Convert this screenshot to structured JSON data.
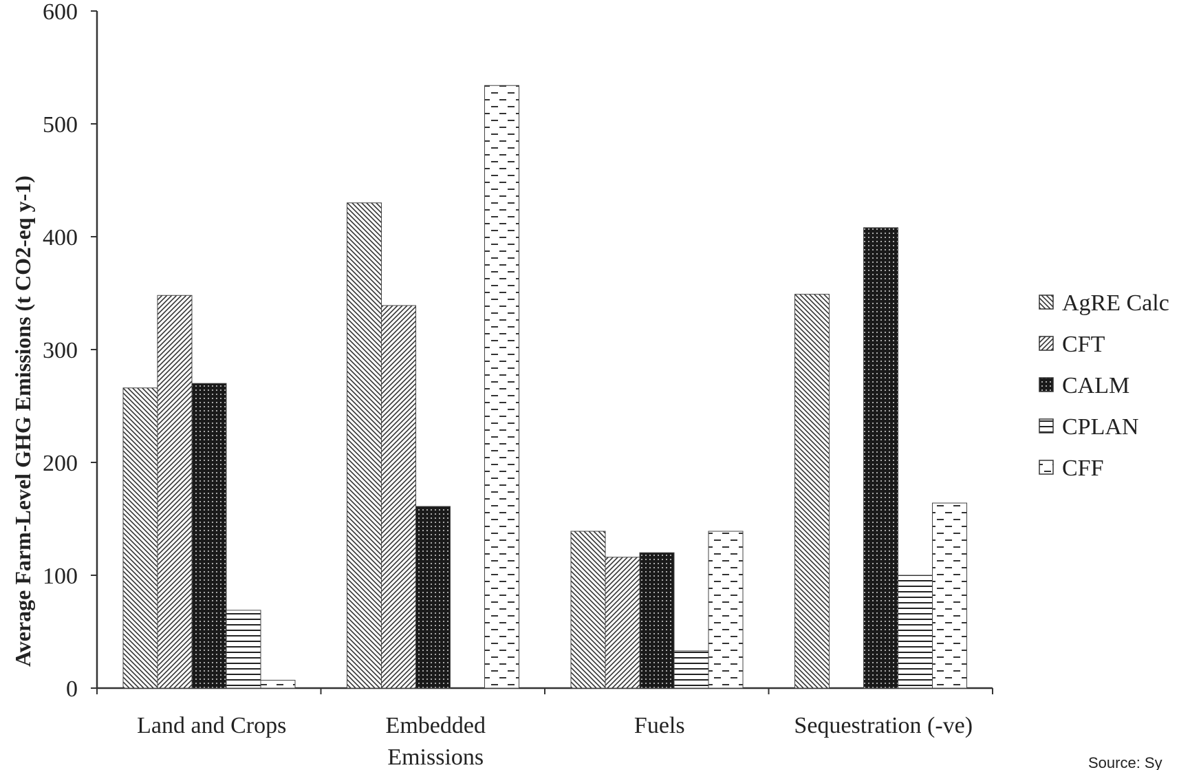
{
  "chart_data": {
    "type": "bar",
    "title": "",
    "xlabel": "",
    "ylabel": "Average Farm-Level GHG Emissions (t CO2-eq y-1)",
    "ylim": [
      0,
      600
    ],
    "yticks": [
      0,
      100,
      200,
      300,
      400,
      500,
      600
    ],
    "categories": [
      [
        "Land and Crops"
      ],
      [
        "Embedded",
        "Emissions"
      ],
      [
        "Fuels"
      ],
      [
        "Sequestration (-ve)"
      ]
    ],
    "series": [
      {
        "name": "AgRE Calc",
        "pattern": "diag-back",
        "values": [
          266,
          430,
          139,
          349
        ]
      },
      {
        "name": "CFT",
        "pattern": "diag-fwd",
        "values": [
          348,
          339,
          116,
          0
        ]
      },
      {
        "name": "CALM",
        "pattern": "dark-dots",
        "values": [
          270,
          161,
          120,
          408
        ]
      },
      {
        "name": "CPLAN",
        "pattern": "horiz",
        "values": [
          69,
          0,
          33,
          100
        ]
      },
      {
        "name": "CFF",
        "pattern": "dashes",
        "values": [
          7,
          534,
          139,
          164
        ]
      }
    ],
    "legend_position": "right",
    "grid": false
  },
  "source_note": "Source: Sy"
}
